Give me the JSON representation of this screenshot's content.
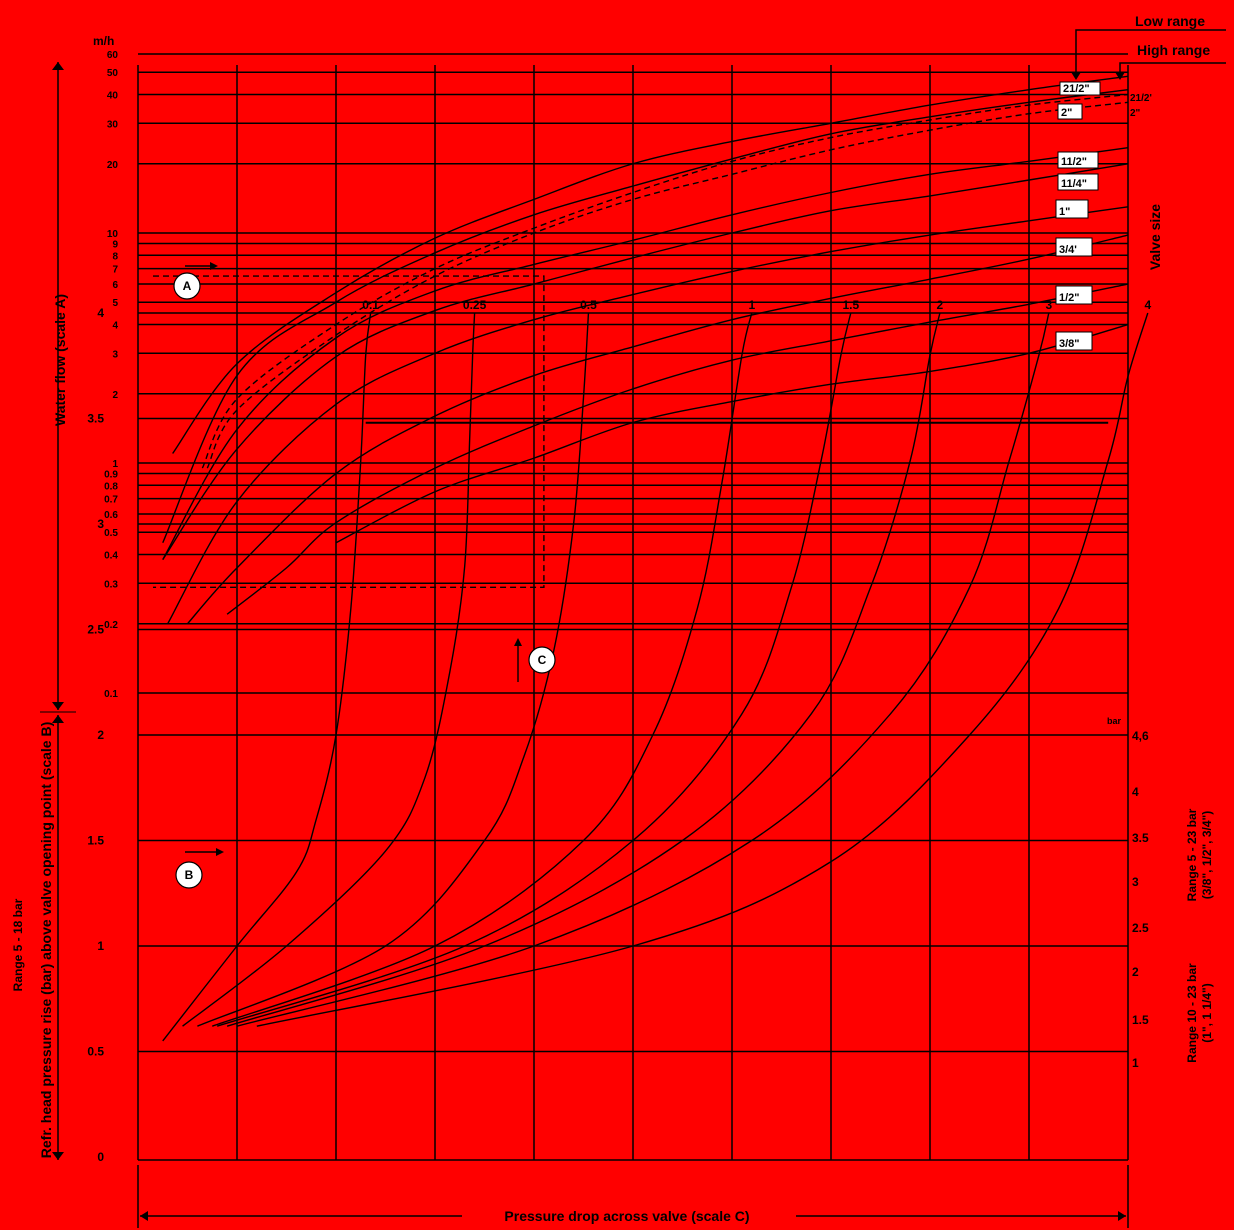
{
  "chart_data": [
    {
      "type": "line",
      "scale": "log",
      "unit_label": "m/h",
      "ylabel": "Water flow (scale A)",
      "right_label": "Valve size",
      "yticks": [
        {
          "v": 60,
          "t": "60"
        },
        {
          "v": 50,
          "t": "50"
        },
        {
          "v": 40,
          "t": "40"
        },
        {
          "v": 30,
          "t": "30"
        },
        {
          "v": 20,
          "t": "20"
        },
        {
          "v": 10,
          "t": "10"
        },
        {
          "v": 9,
          "t": "9"
        },
        {
          "v": 8,
          "t": "8"
        },
        {
          "v": 7,
          "t": "7"
        },
        {
          "v": 6,
          "t": "6"
        },
        {
          "v": 5,
          "t": "5"
        },
        {
          "v": 4,
          "t": "4"
        },
        {
          "v": 3,
          "t": "3"
        },
        {
          "v": 2,
          "t": "2"
        },
        {
          "v": 1,
          "t": "1"
        },
        {
          "v": 0.9,
          "t": "0.9"
        },
        {
          "v": 0.8,
          "t": "0.8"
        },
        {
          "v": 0.7,
          "t": "0.7"
        },
        {
          "v": 0.6,
          "t": "0.6"
        },
        {
          "v": 0.5,
          "t": "0.5"
        },
        {
          "v": 0.4,
          "t": "0.4"
        },
        {
          "v": 0.3,
          "t": "0.3"
        },
        {
          "v": 0.2,
          "t": "0.2"
        },
        {
          "v": 0.1,
          "t": "0.1"
        }
      ],
      "ylim": [
        0.1,
        60
      ],
      "range_headers": [
        "Low range",
        "High range"
      ],
      "series": [
        {
          "name": "21/2\"",
          "dash": false,
          "points": [
            [
              0.35,
              1.1
            ],
            [
              1,
              2.7
            ],
            [
              2,
              5.5
            ],
            [
              3,
              9.5
            ],
            [
              4,
              14
            ],
            [
              5,
              20
            ],
            [
              6,
              25
            ],
            [
              7,
              30
            ],
            [
              8,
              36
            ],
            [
              9,
              42
            ],
            [
              10,
              48
            ]
          ]
        },
        {
          "name": "2\"",
          "dash": false,
          "points": [
            [
              0.25,
              0.45
            ],
            [
              1,
              2.4
            ],
            [
              2,
              5
            ],
            [
              3,
              8.2
            ],
            [
              4,
              12
            ],
            [
              5,
              16
            ],
            [
              6,
              21
            ],
            [
              7,
              27
            ],
            [
              8,
              32
            ],
            [
              9,
              37
            ],
            [
              10,
              42
            ]
          ]
        },
        {
          "name": "11/2\"",
          "dash": false,
          "points": [
            [
              0.25,
              0.38
            ],
            [
              1,
              1.4
            ],
            [
              2,
              3.5
            ],
            [
              3,
              5.6
            ],
            [
              4,
              7.3
            ],
            [
              5,
              9.3
            ],
            [
              6,
              12
            ],
            [
              7,
              15
            ],
            [
              8,
              18
            ],
            [
              9,
              20.5
            ],
            [
              10,
              23.5
            ]
          ]
        },
        {
          "name": "11/4\"",
          "dash": false,
          "points": [
            [
              0.25,
              0.38
            ],
            [
              1,
              1.15
            ],
            [
              2,
              2.9
            ],
            [
              3,
              4.6
            ],
            [
              4,
              6
            ],
            [
              5,
              7.8
            ],
            [
              6,
              10
            ],
            [
              7,
              12.5
            ],
            [
              8,
              14.5
            ],
            [
              9,
              17
            ],
            [
              10,
              20
            ]
          ]
        },
        {
          "name": "1\"",
          "dash": false,
          "points": [
            [
              0.3,
              0.2
            ],
            [
              1,
              0.68
            ],
            [
              2,
              1.8
            ],
            [
              3,
              3
            ],
            [
              4,
              4.2
            ],
            [
              5,
              5.4
            ],
            [
              6,
              6.8
            ],
            [
              7,
              8.3
            ],
            [
              8,
              9.8
            ],
            [
              9,
              11.3
            ],
            [
              10,
              13
            ]
          ]
        },
        {
          "name": "3/4'",
          "dash": false,
          "points": [
            [
              0.5,
              0.2
            ],
            [
              1,
              0.35
            ],
            [
              2,
              0.9
            ],
            [
              3,
              1.6
            ],
            [
              4,
              2.4
            ],
            [
              5,
              3.2
            ],
            [
              6,
              4.2
            ],
            [
              7,
              5.2
            ],
            [
              8,
              6.3
            ],
            [
              9,
              7.7
            ],
            [
              10,
              9.8
            ]
          ]
        },
        {
          "name": "1/2\"",
          "dash": false,
          "points": [
            [
              0.9,
              0.22
            ],
            [
              1.5,
              0.35
            ],
            [
              2,
              0.55
            ],
            [
              3,
              0.95
            ],
            [
              4,
              1.45
            ],
            [
              5,
              2.1
            ],
            [
              6,
              2.8
            ],
            [
              7,
              3.4
            ],
            [
              8,
              4.1
            ],
            [
              9,
              4.9
            ],
            [
              10,
              6
            ]
          ]
        },
        {
          "name": "3/8\"",
          "dash": false,
          "points": [
            [
              2,
              0.45
            ],
            [
              3,
              0.75
            ],
            [
              4,
              1.05
            ],
            [
              5,
              1.5
            ],
            [
              6,
              1.85
            ],
            [
              7,
              2.2
            ],
            [
              8,
              2.5
            ],
            [
              9,
              3
            ],
            [
              10,
              4
            ]
          ]
        },
        {
          "name": "21/2'",
          "dash": true,
          "points": [
            [
              0.65,
              0.95
            ],
            [
              1,
              1.9
            ],
            [
              2,
              4
            ],
            [
              3,
              7
            ],
            [
              4,
              10.5
            ],
            [
              5,
              15
            ],
            [
              6,
              20.5
            ],
            [
              7,
              26
            ],
            [
              8,
              31
            ],
            [
              9,
              36
            ],
            [
              10,
              40
            ]
          ]
        },
        {
          "name": "2\"",
          "dash": true,
          "points": [
            [
              0.7,
              0.95
            ],
            [
              1,
              1.7
            ],
            [
              2,
              3.6
            ],
            [
              3,
              6.5
            ],
            [
              4,
              10
            ],
            [
              5,
              14
            ],
            [
              6,
              18
            ],
            [
              7,
              23
            ],
            [
              8,
              28
            ],
            [
              9,
              33
            ],
            [
              10,
              37
            ]
          ]
        }
      ]
    },
    {
      "type": "line",
      "ylabel": "Refr. head pressure rise (bar) above valve opening point (scale B)",
      "left_range_label": "Range 5 - 18 bar",
      "yticks": [
        "0",
        "0.5",
        "1",
        "1.5",
        "2",
        "2.5",
        "3",
        "3.5",
        "4"
      ],
      "ylim": [
        0,
        4.2
      ],
      "right_ticks_a": [
        "4,6",
        "4",
        "3.5",
        "3",
        "2.5",
        "2",
        "1.5",
        "1"
      ],
      "right_label_a": [
        "Range 5 - 23 bar",
        "(3/8\", 1/2\", 3/4\")"
      ],
      "right_label_b": [
        "Range 10 - 23 bar",
        "(1\", 1 1/4\")"
      ],
      "unit": "bar",
      "xlabel": "Pressure drop across valve (scale C)",
      "series": [
        {
          "name": "0.1",
          "points": [
            [
              0.25,
              0.55
            ],
            [
              1,
              1.0
            ],
            [
              1.6,
              1.35
            ],
            [
              1.8,
              1.6
            ],
            [
              2,
              2.0
            ],
            [
              2.15,
              2.6
            ],
            [
              2.25,
              3.3
            ],
            [
              2.3,
              3.8
            ],
            [
              2.35,
              4.0
            ]
          ]
        },
        {
          "name": "0.25",
          "points": [
            [
              0.45,
              0.62
            ],
            [
              1.5,
              1.0
            ],
            [
              2.5,
              1.45
            ],
            [
              2.9,
              1.8
            ],
            [
              3.15,
              2.3
            ],
            [
              3.3,
              2.8
            ],
            [
              3.35,
              3.4
            ],
            [
              3.38,
              3.8
            ],
            [
              3.4,
              4.0
            ]
          ]
        },
        {
          "name": "0.5",
          "points": [
            [
              0.6,
              0.62
            ],
            [
              2.5,
              1.0
            ],
            [
              3.5,
              1.5
            ],
            [
              3.9,
              1.9
            ],
            [
              4.2,
              2.4
            ],
            [
              4.4,
              3.0
            ],
            [
              4.5,
              3.6
            ],
            [
              4.55,
              4.0
            ]
          ]
        },
        {
          "name": "1",
          "points": [
            [
              0.75,
              0.62
            ],
            [
              3,
              1.0
            ],
            [
              4.5,
              1.5
            ],
            [
              5.2,
              2.0
            ],
            [
              5.65,
              2.6
            ],
            [
              5.9,
              3.2
            ],
            [
              6.1,
              3.8
            ],
            [
              6.2,
              4.0
            ]
          ]
        },
        {
          "name": "1.5",
          "points": [
            [
              0.8,
              0.62
            ],
            [
              3.3,
              1.0
            ],
            [
              5,
              1.5
            ],
            [
              6.1,
              2.1
            ],
            [
              6.6,
              2.7
            ],
            [
              6.9,
              3.3
            ],
            [
              7.1,
              3.8
            ],
            [
              7.2,
              4.0
            ]
          ]
        },
        {
          "name": "2",
          "points": [
            [
              0.9,
              0.62
            ],
            [
              3.5,
              1.0
            ],
            [
              5.5,
              1.5
            ],
            [
              6.8,
              2.1
            ],
            [
              7.4,
              2.7
            ],
            [
              7.8,
              3.3
            ],
            [
              8,
              3.8
            ],
            [
              8.1,
              4.0
            ]
          ]
        },
        {
          "name": "3",
          "points": [
            [
              1,
              0.62
            ],
            [
              4,
              1.0
            ],
            [
              6.2,
              1.5
            ],
            [
              7.6,
              2.1
            ],
            [
              8.4,
              2.7
            ],
            [
              8.8,
              3.3
            ],
            [
              9.1,
              3.8
            ],
            [
              9.2,
              4.0
            ]
          ]
        },
        {
          "name": "4",
          "points": [
            [
              1.2,
              0.62
            ],
            [
              5,
              1.0
            ],
            [
              7,
              1.4
            ],
            [
              8.4,
              2.0
            ],
            [
              9.3,
              2.6
            ],
            [
              9.8,
              3.3
            ],
            [
              10,
              3.7
            ],
            [
              10.2,
              4.0
            ]
          ]
        }
      ]
    }
  ],
  "annotations": {
    "a": "A",
    "b": "B",
    "c": "C"
  },
  "colors": {
    "background": "#ff0000",
    "grid": "#000000",
    "badge": "#ffffff"
  }
}
